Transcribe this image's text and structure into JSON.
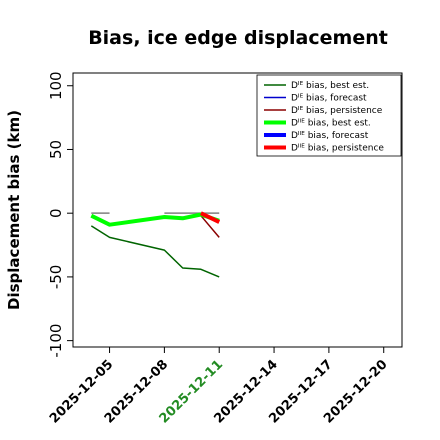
{
  "chart_data": {
    "type": "line",
    "title": "Bias, ice edge displacement",
    "xlabel": "",
    "ylabel": "Displacement bias (km)",
    "ylim": [
      -105,
      110
    ],
    "yticks": [
      100,
      50,
      0,
      -50,
      -100
    ],
    "xlim": [
      "2025-12-03",
      "2025-12-21"
    ],
    "xticks": [
      "2025-12-05",
      "2025-12-08",
      "2025-12-11",
      "2025-12-14",
      "2025-12-17",
      "2025-12-20"
    ],
    "highlight_tick": "2025-12-11",
    "highlight_color": "#228b22",
    "grid": false,
    "legend_position": "top-right",
    "series": [
      {
        "name": "Dᴵᴱ bias, best est.",
        "color": "#006400",
        "width": 1.5,
        "points": [
          [
            "2025-12-04",
            -10
          ],
          [
            "2025-12-05",
            -19
          ],
          [
            "2025-12-08",
            -29
          ],
          [
            "2025-12-09",
            -43
          ],
          [
            "2025-12-10",
            -44
          ],
          [
            "2025-12-11",
            -50
          ]
        ]
      },
      {
        "name": "Dᴵᴱ bias, forecast",
        "color": "#0000cd",
        "width": 1.5,
        "points": []
      },
      {
        "name": "Dᴵᴱ bias, persistence",
        "color": "#8b0000",
        "width": 1.5,
        "points": [
          [
            "2025-12-10",
            -2
          ],
          [
            "2025-12-11",
            -19
          ]
        ]
      },
      {
        "name": "Dᴵᴵᴱ bias, best est.",
        "color": "#00ff00",
        "width": 4,
        "points": [
          [
            "2025-12-04",
            -2
          ],
          [
            "2025-12-05",
            -9
          ],
          [
            "2025-12-08",
            -3
          ],
          [
            "2025-12-09",
            -4
          ],
          [
            "2025-12-10",
            -1
          ],
          [
            "2025-12-11",
            -6
          ]
        ]
      },
      {
        "name": "Dᴵᴵᴱ bias, forecast",
        "color": "#0000ff",
        "width": 4,
        "points": []
      },
      {
        "name": "Dᴵᴵᴱ bias, persistence",
        "color": "#ff0000",
        "width": 4,
        "points": [
          [
            "2025-12-10",
            0
          ],
          [
            "2025-12-11",
            -7
          ]
        ]
      }
    ],
    "reference_segments": {
      "color": "#808080",
      "value": 0,
      "ranges": [
        [
          "2025-12-04",
          "2025-12-05"
        ],
        [
          "2025-12-08",
          "2025-12-11"
        ]
      ]
    }
  }
}
